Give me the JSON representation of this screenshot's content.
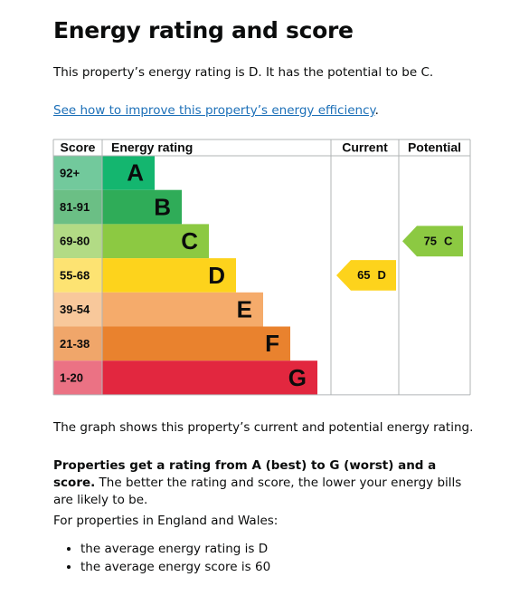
{
  "header": {
    "title": "Energy rating and score"
  },
  "intro": "This property’s energy rating is D. It has the potential to be C.",
  "link": {
    "text": "See how to improve this property’s energy efficiency",
    "after": "."
  },
  "graph": {
    "headers": [
      "Score",
      "Energy rating",
      "Current",
      "Potential"
    ],
    "bands": [
      {
        "score": "92+",
        "rating": "A",
        "color": "#14b66f",
        "score_color": "#72c99c"
      },
      {
        "score": "81-91",
        "rating": "B",
        "color": "#2fac58",
        "score_color": "#6bbf85"
      },
      {
        "score": "69-80",
        "rating": "C",
        "color": "#8cc942",
        "score_color": "#b2db85"
      },
      {
        "score": "55-68",
        "rating": "D",
        "color": "#fdd31c",
        "score_color": "#fde372"
      },
      {
        "score": "39-54",
        "rating": "E",
        "color": "#f5ab6b",
        "score_color": "#f8c89b"
      },
      {
        "score": "21-38",
        "rating": "F",
        "color": "#e9822e",
        "score_color": "#f0a66a"
      },
      {
        "score": "1-20",
        "rating": "G",
        "color": "#e2273f",
        "score_color": "#eb7284"
      }
    ],
    "current": {
      "score": 65,
      "rating": "D"
    },
    "potential": {
      "score": 75,
      "rating": "C"
    }
  },
  "caption": "The graph shows this property’s current and potential energy rating.",
  "paragraph": {
    "bold": "Properties get a rating from A (best) to G (worst) and a score.",
    "rest": " The better the rating and score, the lower your energy bills are likely to be."
  },
  "note": "For properties in England and Wales:",
  "bullets": [
    "the average energy rating is D",
    "the average energy score is 60"
  ]
}
